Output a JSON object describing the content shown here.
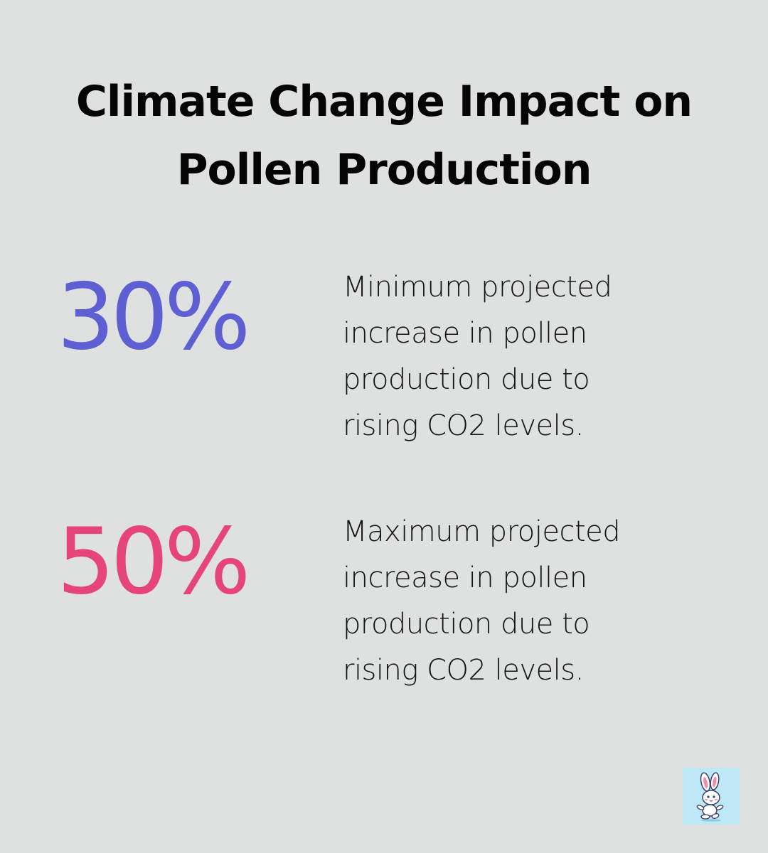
{
  "title": {
    "line1": "Climate Change Impact on",
    "line2": "Pollen Production"
  },
  "stats": [
    {
      "value": "30%",
      "color": "#5d5fd2",
      "description": [
        "Minimum projected",
        "increase in pollen",
        "production due to",
        "rising CO2 levels."
      ]
    },
    {
      "value": "50%",
      "color": "#e6457a",
      "description": [
        "Maximum projected",
        "increase in pollen",
        "production due to",
        "rising CO2 levels."
      ]
    }
  ],
  "logo": {
    "icon": "bunny-mascot-icon",
    "background": "#bfe8f7"
  }
}
